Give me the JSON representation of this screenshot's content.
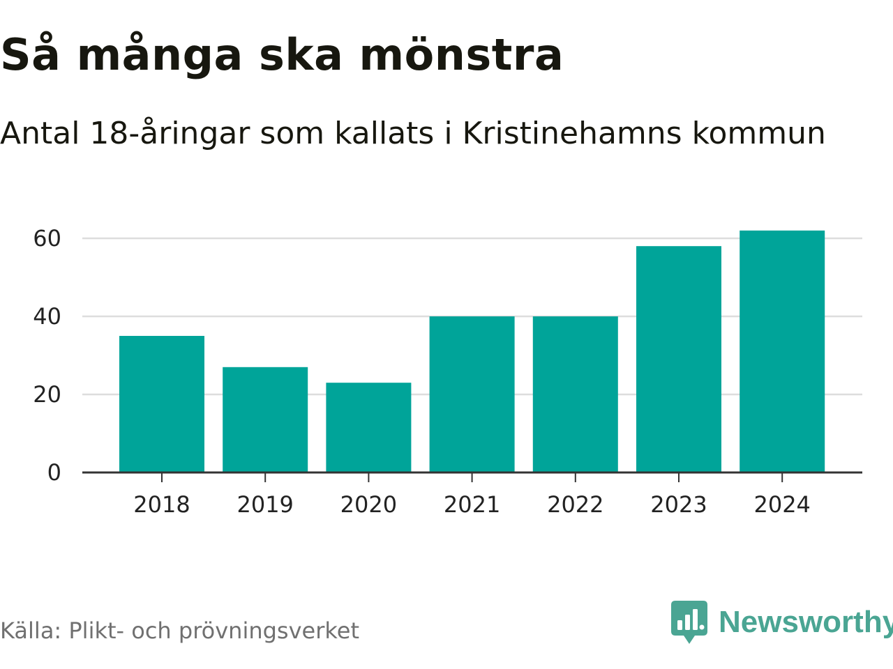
{
  "header": {
    "title": "Så många ska mönstra",
    "subtitle": "Antal 18-åringar som kallats i Kristinehamns kommun"
  },
  "footer": {
    "source": "Källa: Plikt- och prövningsverket",
    "brand": "Newsworthy",
    "brand_icon": "bar-chart-speech-bubble-icon",
    "brand_color": "#4aa593"
  },
  "colors": {
    "bar": "#00a499",
    "grid": "#dddddd",
    "axis": "#333333"
  },
  "chart_data": {
    "type": "bar",
    "title": "Så många ska mönstra",
    "subtitle": "Antal 18-åringar som kallats i Kristinehamns kommun",
    "categories": [
      "2018",
      "2019",
      "2020",
      "2021",
      "2022",
      "2023",
      "2024"
    ],
    "values": [
      35,
      27,
      23,
      40,
      40,
      58,
      62
    ],
    "xlabel": "",
    "ylabel": "",
    "ylim": [
      0,
      62
    ],
    "yticks": [
      0,
      20,
      40,
      60
    ],
    "grid": true,
    "legend": "none"
  }
}
